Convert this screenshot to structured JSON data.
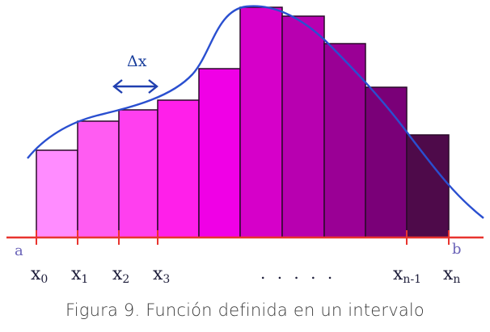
{
  "figure": {
    "delta_label": "Δx",
    "left_endpoint": "a",
    "right_endpoint": "b",
    "ellipsis": ". . . . .",
    "ticks": [
      {
        "base": "x",
        "sub": "0"
      },
      {
        "base": "x",
        "sub": "1"
      },
      {
        "base": "x",
        "sub": "2"
      },
      {
        "base": "x",
        "sub": "3"
      },
      {
        "base": "x",
        "sub": "n-1"
      },
      {
        "base": "x",
        "sub": "n"
      }
    ],
    "colors": {
      "axis": "#e8342e",
      "curve": "#2a4fd0",
      "arrow": "#1f3fb0",
      "bar_outline": "#2a0a2a",
      "bars": [
        "#ff8cff",
        "#ff5cf2",
        "#ff3fef",
        "#ff1fea",
        "#f000e6",
        "#d600c9",
        "#b800b0",
        "#9a0095",
        "#7a0078",
        "#4e0a4a"
      ]
    }
  },
  "caption": "Figura 9. Función definida en un intervalo"
}
